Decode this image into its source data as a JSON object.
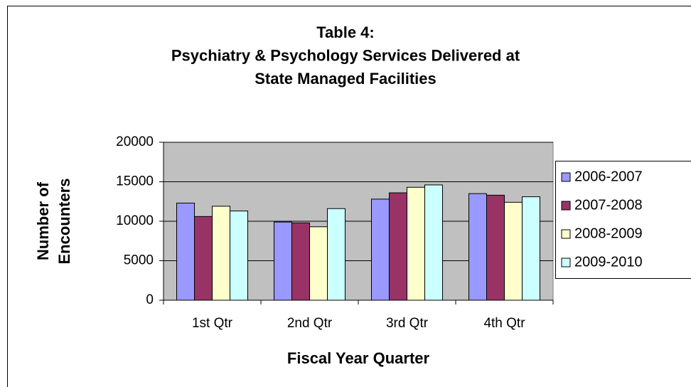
{
  "chart_data": {
    "type": "bar",
    "title": [
      "Table 4:",
      "Psychiatry & Psychology Services Delivered at",
      "State Managed Facilities"
    ],
    "xlabel": "Fiscal Year Quarter",
    "ylabel": [
      "Number of",
      "Encounters"
    ],
    "categories": [
      "1st Qtr",
      "2nd Qtr",
      "3rd Qtr",
      "4th Qtr"
    ],
    "series": [
      {
        "name": "2006-2007",
        "color": "#9999ff",
        "values": [
          12300,
          9900,
          12800,
          13500
        ]
      },
      {
        "name": "2007-2008",
        "color": "#993366",
        "values": [
          10600,
          9800,
          13600,
          13300
        ]
      },
      {
        "name": "2008-2009",
        "color": "#ffffcc",
        "values": [
          11900,
          9300,
          14300,
          12400
        ]
      },
      {
        "name": "2009-2010",
        "color": "#ccffff",
        "values": [
          11300,
          11600,
          14600,
          13100
        ]
      }
    ],
    "ylim": [
      0,
      20000
    ],
    "yticks": [
      0,
      5000,
      10000,
      15000,
      20000
    ],
    "grid": true,
    "legend": "right"
  }
}
